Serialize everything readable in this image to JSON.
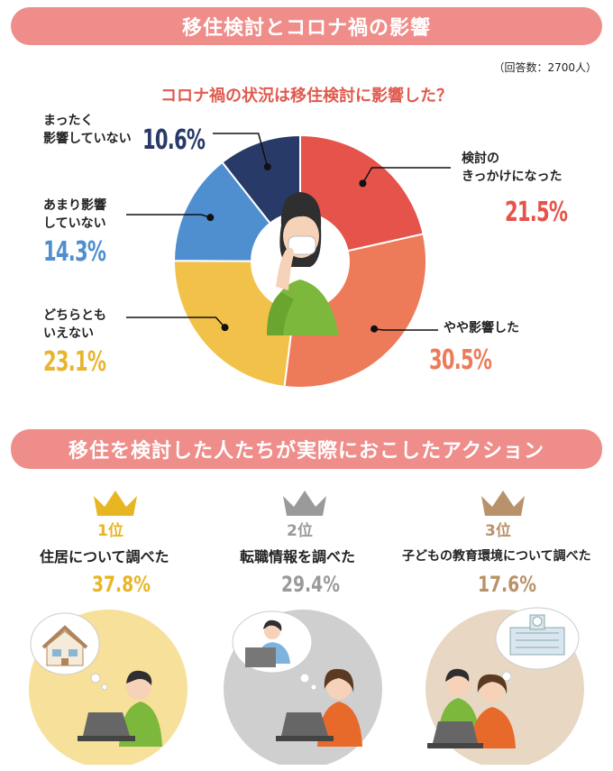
{
  "banners": {
    "top": "移住検討とコロナ禍の影響",
    "bottom": "移住を検討した人たちが実際におこしたアクション"
  },
  "respondents": "（回答数：2700人）",
  "question": "コロナ禍の状況は移住検討に影響した？",
  "chart_data": {
    "type": "pie",
    "style": "donut",
    "title": "コロナ禍の状況は移住検討に影響した？",
    "slices": [
      {
        "label": "検討のきっかけになった",
        "value": 21.5,
        "display": "21.5%",
        "color": "#e5534a"
      },
      {
        "label": "やや影響した",
        "value": 30.5,
        "display": "30.5%",
        "color": "#ed7b5a"
      },
      {
        "label": "どちらともいえない",
        "value": 23.1,
        "display": "23.1%",
        "color": "#f2c14a"
      },
      {
        "label": "あまり影響していない",
        "value": 14.3,
        "display": "14.3%",
        "color": "#4f8fd0"
      },
      {
        "label": "まったく影響していない",
        "value": 10.6,
        "display": "10.6%",
        "color": "#283a68"
      }
    ],
    "center_text_color": "#ffffff"
  },
  "labels": {
    "s0": "検討の\nきっかけになった",
    "s1": "やや影響した",
    "s2": "どちらとも\nいえない",
    "s3": "あまり影響\nしていない",
    "s4": "まったく\n影響していない"
  },
  "ranking": [
    {
      "rank": "1位",
      "action": "住居について調べた",
      "percent": "37.8%",
      "crown_color": "#e8b623",
      "circle_color": "#f7e09a",
      "value": 37.8
    },
    {
      "rank": "2位",
      "action": "転職情報を調べた",
      "percent": "29.4%",
      "crown_color": "#9a9a9a",
      "circle_color": "#cfcfcf",
      "value": 29.4
    },
    {
      "rank": "3位",
      "action": "子どもの教育環境について調べた",
      "percent": "17.6%",
      "crown_color": "#b8926a",
      "circle_color": "#e8d7c3",
      "value": 17.6
    }
  ]
}
